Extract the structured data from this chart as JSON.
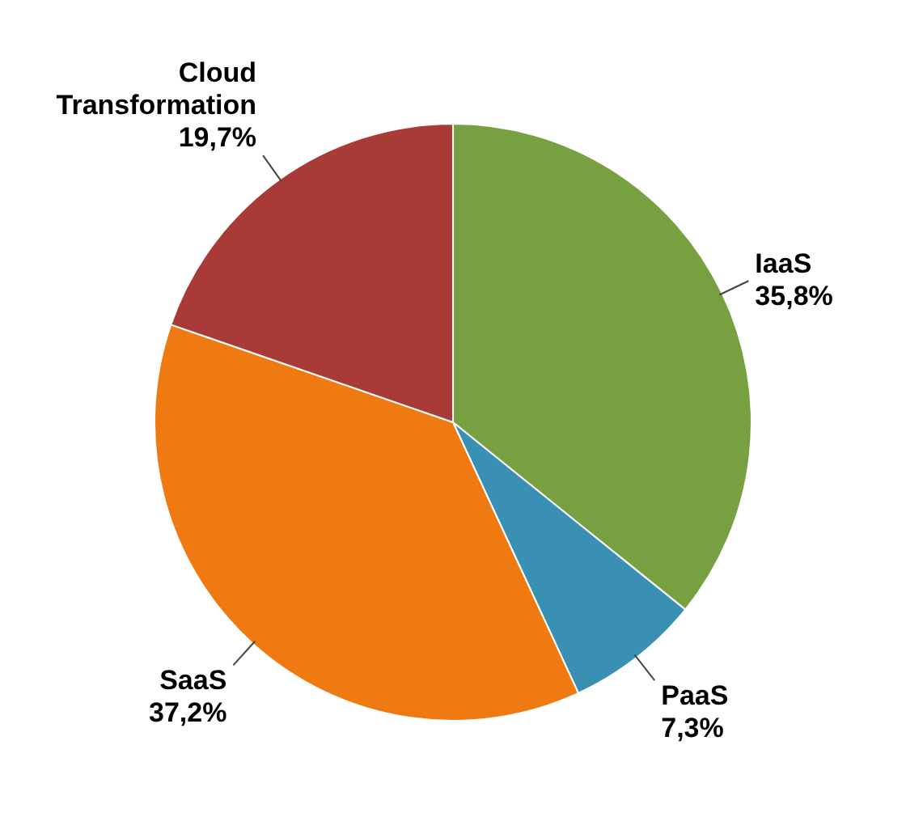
{
  "chart_data": {
    "type": "pie",
    "categories": [
      "IaaS",
      "PaaS",
      "SaaS",
      "Cloud Transformation"
    ],
    "values": [
      35.8,
      7.3,
      37.2,
      19.7
    ],
    "colors": [
      "#77a040",
      "#3a90b2",
      "#f07a12",
      "#a83b38"
    ],
    "value_labels": [
      "35,8%",
      "7,3%",
      "37,2%",
      "19,7%"
    ],
    "legend": false
  }
}
